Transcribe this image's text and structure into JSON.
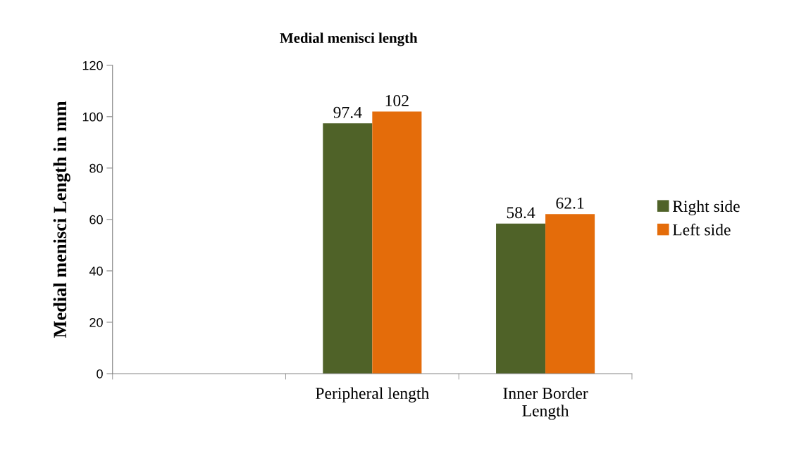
{
  "chart_data": {
    "type": "bar",
    "title": "Medial menisci length",
    "ylabel": "Medial menisci Length in mm",
    "categories": [
      null,
      "Peripheral length",
      "Inner Border\nLength"
    ],
    "series": [
      {
        "name": "Right side",
        "color": "#4f6228",
        "values": [
          null,
          97.4,
          58.4
        ]
      },
      {
        "name": "Left side",
        "color": "#e46c0a",
        "values": [
          null,
          102,
          62.1
        ]
      }
    ],
    "ylim": [
      0,
      120
    ],
    "yticks": [
      0,
      20,
      40,
      60,
      80,
      100,
      120
    ],
    "grid": false,
    "legend": "right",
    "data_labels": true
  }
}
